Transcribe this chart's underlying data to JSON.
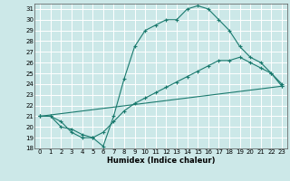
{
  "title": "",
  "xlabel": "Humidex (Indice chaleur)",
  "xlim_min": -0.5,
  "xlim_max": 23.5,
  "ylim_min": 18,
  "ylim_max": 31.5,
  "xticks": [
    0,
    1,
    2,
    3,
    4,
    5,
    6,
    7,
    8,
    9,
    10,
    11,
    12,
    13,
    14,
    15,
    16,
    17,
    18,
    19,
    20,
    21,
    22,
    23
  ],
  "yticks": [
    18,
    19,
    20,
    21,
    22,
    23,
    24,
    25,
    26,
    27,
    28,
    29,
    30,
    31
  ],
  "line_color": "#1a7a6e",
  "bg_color": "#cce8e8",
  "grid_color": "#ffffff",
  "line1_x": [
    0,
    1,
    2,
    3,
    4,
    5,
    6,
    7,
    8,
    9,
    10,
    11,
    12,
    13,
    14,
    15,
    16,
    17,
    18,
    19,
    20,
    21,
    22,
    23
  ],
  "line1_y": [
    21,
    21,
    20.5,
    19.5,
    19,
    19,
    18.2,
    21,
    24.5,
    27.5,
    29,
    29.5,
    30,
    30,
    31,
    31.3,
    31,
    30,
    29,
    27.5,
    26.5,
    26,
    25,
    23.8
  ],
  "line2_x": [
    0,
    1,
    2,
    3,
    4,
    5,
    6,
    7,
    8,
    9,
    10,
    11,
    12,
    13,
    14,
    15,
    16,
    17,
    18,
    19,
    20,
    21,
    22,
    23
  ],
  "line2_y": [
    21,
    21,
    20,
    19.8,
    19.3,
    19,
    19.5,
    20.5,
    21.5,
    22.2,
    22.7,
    23.2,
    23.7,
    24.2,
    24.7,
    25.2,
    25.7,
    26.2,
    26.2,
    26.5,
    26,
    25.5,
    25,
    24
  ],
  "line3_x": [
    0,
    23
  ],
  "line3_y": [
    21,
    23.8
  ],
  "marker_size": 3,
  "linewidth": 0.8,
  "tick_fontsize": 5,
  "xlabel_fontsize": 6
}
